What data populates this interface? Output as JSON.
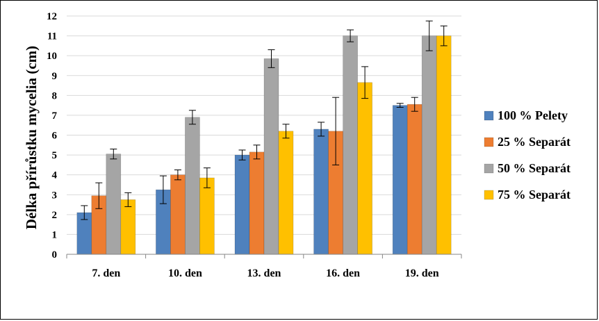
{
  "chart_data": {
    "type": "bar",
    "title": "",
    "xlabel": "",
    "ylabel": "Délka přírůstku mycelia (cm)",
    "ylim": [
      0,
      12
    ],
    "yticks": [
      "0",
      "1",
      "2",
      "3",
      "4",
      "5",
      "6",
      "7",
      "8",
      "9",
      "10",
      "11",
      "12"
    ],
    "grid": "horizontal",
    "legend_position": "right",
    "categories": [
      "7. den",
      "10. den",
      "13. den",
      "16. den",
      "19. den"
    ],
    "series": [
      {
        "name": "100 % Pelety",
        "color": "#4F81BD",
        "values": [
          2.1,
          3.25,
          5.0,
          6.3,
          7.5
        ],
        "error": [
          0.35,
          0.7,
          0.25,
          0.35,
          0.1
        ]
      },
      {
        "name": "25 % Separát",
        "color": "#ED7D31",
        "values": [
          2.95,
          4.0,
          5.15,
          6.2,
          7.55
        ],
        "error": [
          0.65,
          0.25,
          0.35,
          1.7,
          0.35
        ]
      },
      {
        "name": "50 % Separát",
        "color": "#A5A5A5",
        "values": [
          5.05,
          6.9,
          9.85,
          11.0,
          11.0
        ],
        "error": [
          0.25,
          0.35,
          0.45,
          0.3,
          0.75
        ]
      },
      {
        "name": "75 % Separát",
        "color": "#FFC000",
        "values": [
          2.75,
          3.85,
          6.2,
          8.65,
          11.0
        ],
        "error": [
          0.35,
          0.5,
          0.35,
          0.8,
          0.5
        ]
      }
    ]
  }
}
